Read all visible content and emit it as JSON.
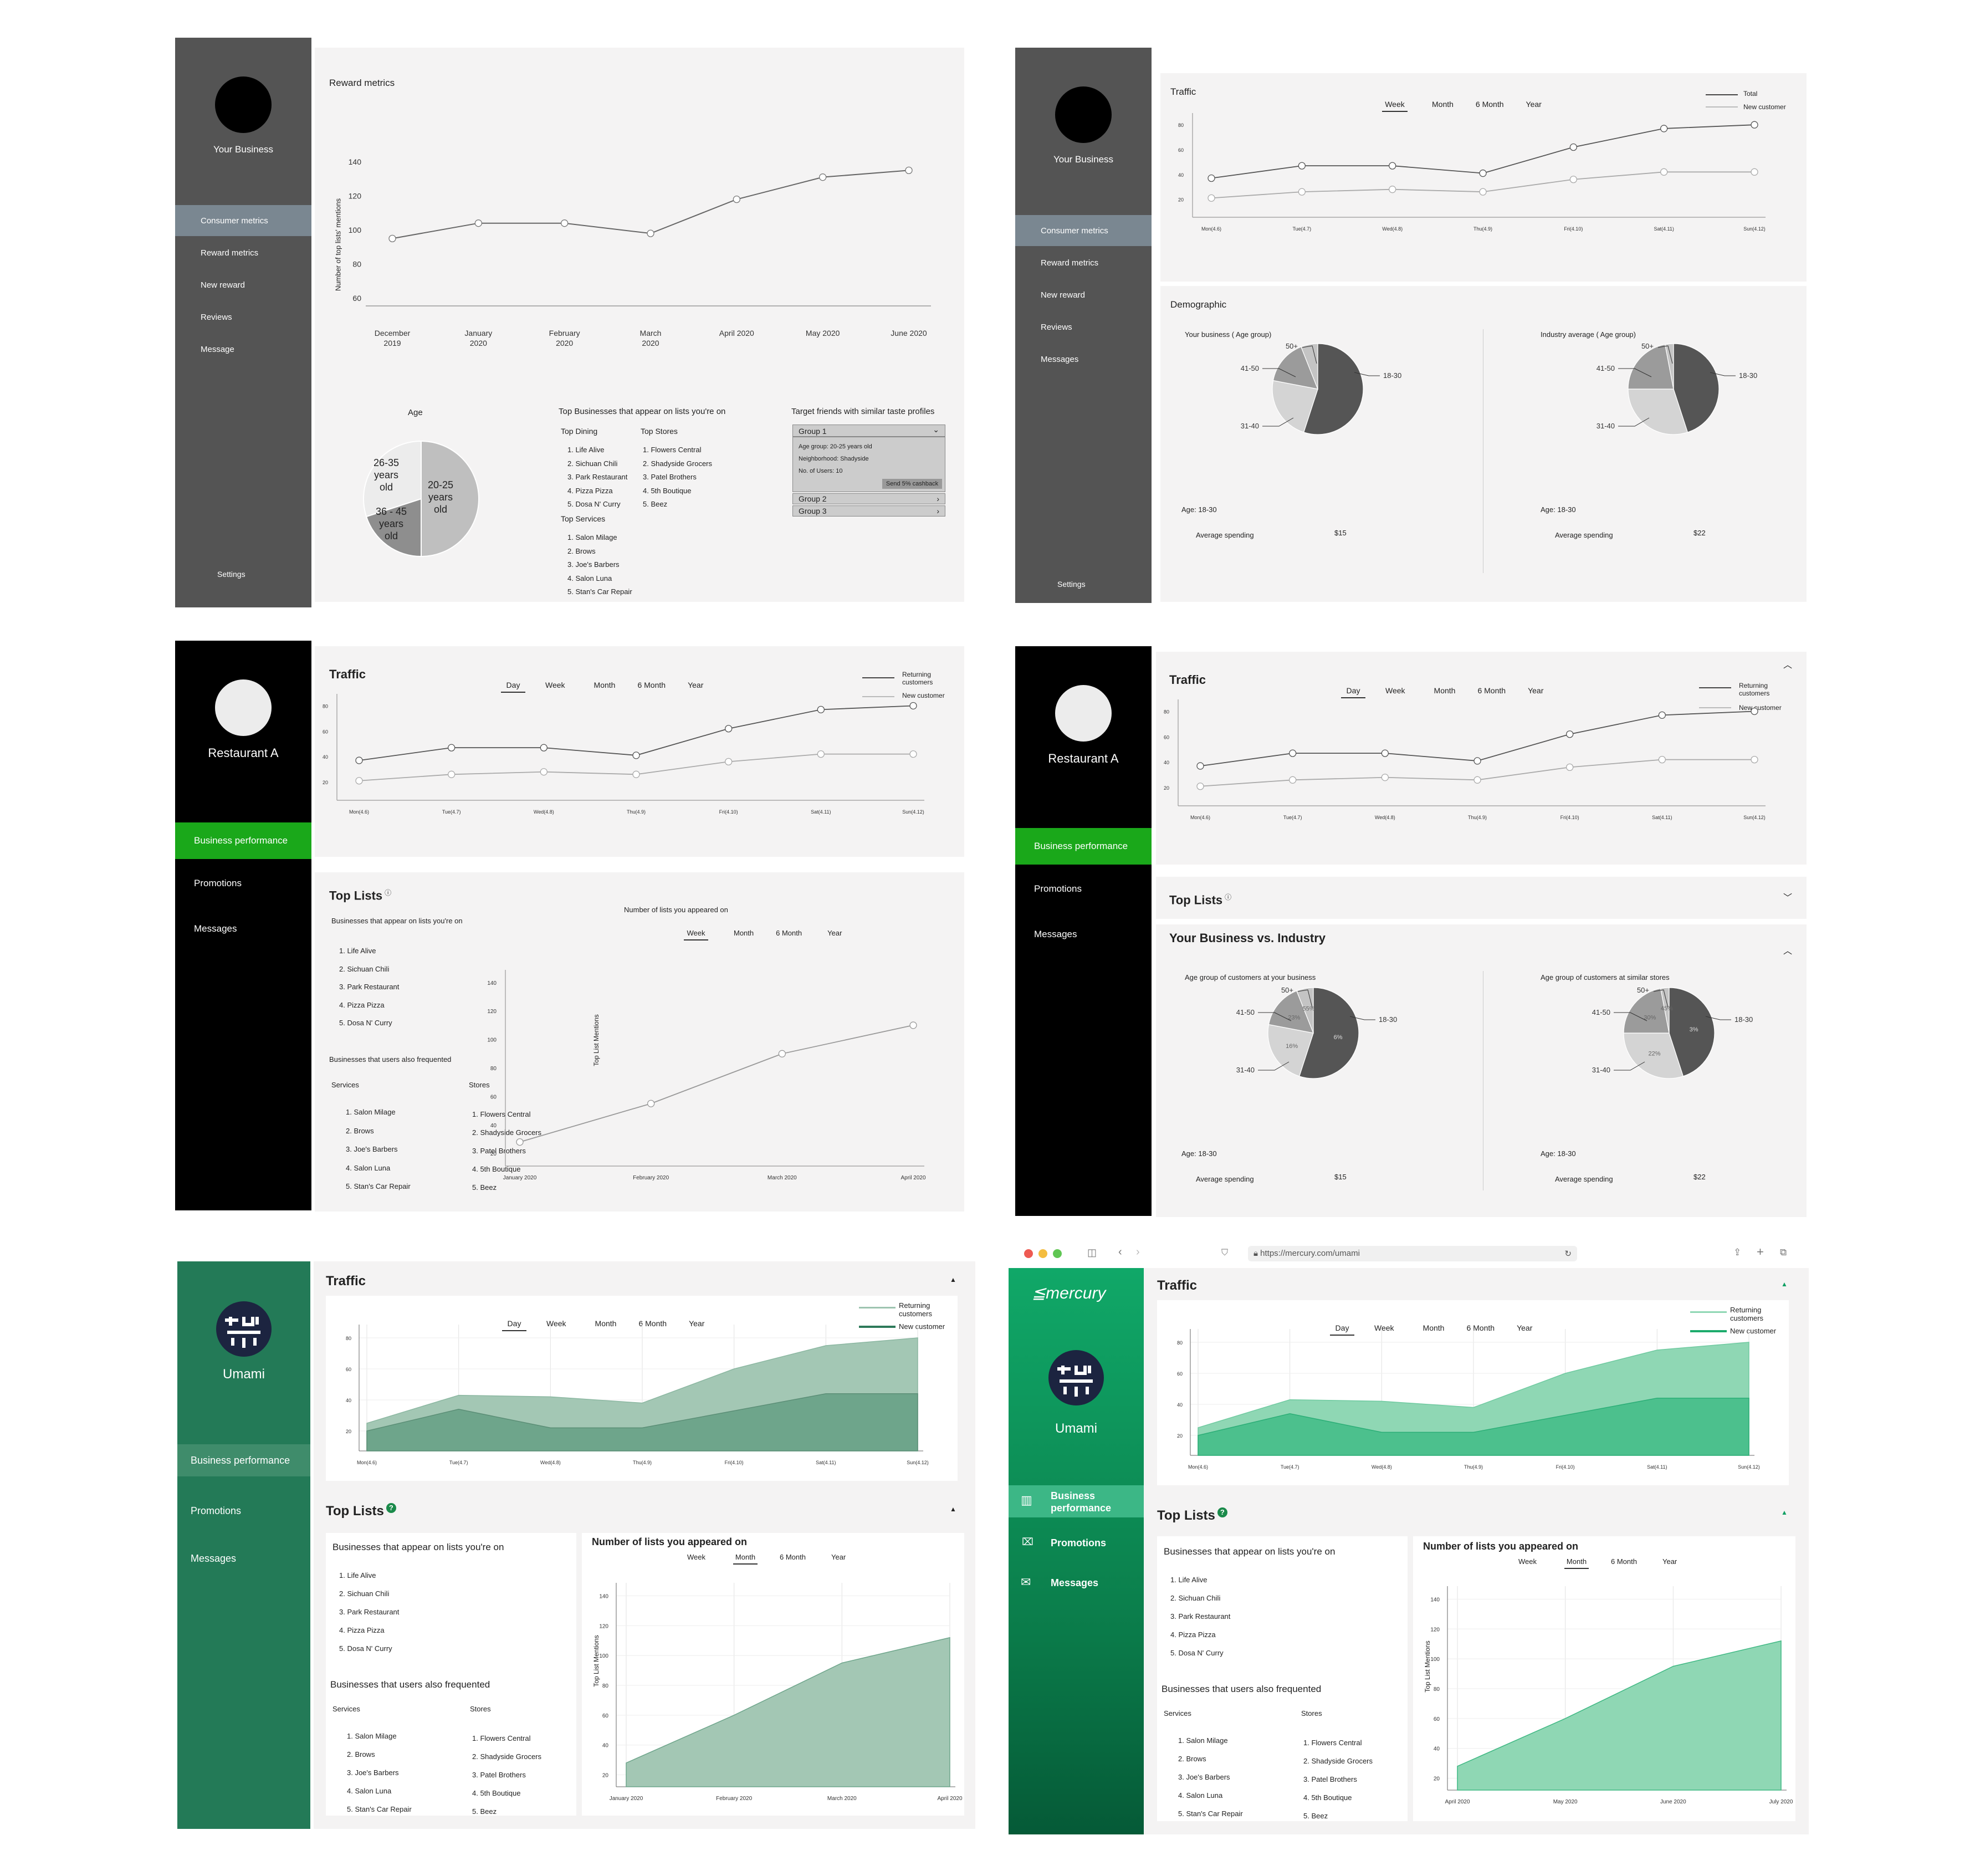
{
  "m1": {
    "business_name": "Your Business",
    "nav": [
      "Consumer metrics",
      "Reward metrics",
      "New reward",
      "Reviews",
      "Message"
    ],
    "settings": "Settings",
    "reward_title": "Reward metrics",
    "ylabel": "Number of top lists' mentions",
    "yticks": [
      "140",
      "120",
      "100",
      "80",
      "60"
    ],
    "xticks": [
      [
        "December",
        "2019"
      ],
      [
        "January",
        "2020"
      ],
      [
        "February",
        "2020"
      ],
      [
        "March",
        "2020"
      ],
      [
        "April 2020",
        ""
      ],
      [
        "May 2020",
        ""
      ],
      [
        "June 2020",
        ""
      ]
    ],
    "age_title": "Age",
    "pie_labels": [
      [
        "26-35",
        "years",
        "old"
      ],
      [
        "20-25",
        "years",
        "old"
      ],
      [
        "36 - 45",
        "years",
        "old"
      ]
    ],
    "topbiz_title": "Top Businesses that appear on lists you're on",
    "dining_title": "Top Dining",
    "dining": [
      "1. Life Alive",
      "2. Sichuan Chili",
      "3. Park Restaurant",
      "4. Pizza Pizza",
      "5. Dosa N' Curry"
    ],
    "stores_title": "Top Stores",
    "stores": [
      "1. Flowers Central",
      "2. Shadyside Grocers",
      "3. Patel Brothers",
      "4. 5th Boutique",
      "5. Beez"
    ],
    "services_title": "Top Services",
    "services": [
      "1. Salon Milage",
      "2. Brows",
      "3. Joe's Barbers",
      "4. Salon Luna",
      "5. Stan's Car Repair"
    ],
    "target_title": "Target friends with similar taste profiles",
    "group1": "Group 1",
    "group1_details": [
      "Age group: 20-25 years old",
      "Neighborhood: Shadyside",
      "No. of Users: 10"
    ],
    "cashback": "Send 5% cashback",
    "group2": "Group 2",
    "group3": "Group 3"
  },
  "m2": {
    "business_name": "Your Business",
    "nav": [
      "Consumer metrics",
      "Reward metrics",
      "New reward",
      "Reviews",
      "Messages"
    ],
    "settings": "Settings",
    "traffic_title": "Traffic",
    "tabs": [
      "Week",
      "Month",
      "6 Month",
      "Year"
    ],
    "legend": [
      "Total",
      "New customer"
    ],
    "yticks": [
      "80",
      "60",
      "40",
      "20"
    ],
    "xticks": [
      "Mon(4.6)",
      "Tue(4.7)",
      "Wed(4.8)",
      "Thu(4.9)",
      "Fri(4.10)",
      "Sat(4.11)",
      "Sun(4.12)"
    ],
    "demo_title": "Demographic",
    "your_age": "Your business ( Age group)",
    "industry_age": "Industry average ( Age group)",
    "slice_labels": [
      "50+",
      "41-50",
      "31-40",
      "18-30"
    ],
    "age_value": "Age: 18-30",
    "avg_spending": "Average spending",
    "your_spend": "$15",
    "industry_spend": "$22"
  },
  "m3": {
    "business_name": "Restaurant A",
    "nav": [
      "Business performance",
      "Promotions",
      "Messages"
    ],
    "traffic_title": "Traffic",
    "tabs": [
      "Day",
      "Week",
      "Month",
      "6 Month",
      "Year"
    ],
    "legend": [
      "Returning customers",
      "New customer"
    ],
    "yticks": [
      "80",
      "60",
      "40",
      "20"
    ],
    "xticks": [
      "Mon(4.6)",
      "Tue(4.7)",
      "Wed(4.8)",
      "Thu(4.9)",
      "Fri(4.10)",
      "Sat(4.11)",
      "Sun(4.12)"
    ],
    "toplists_title": "Top Lists",
    "appear_title": "Businesses that appear on lists you're on",
    "appear": [
      "1. Life Alive",
      "2. Sichuan Chili",
      "3. Park Restaurant",
      "4. Pizza Pizza",
      "5. Dosa N' Curry"
    ],
    "freq_title": "Businesses that users also frequented",
    "services_title": "Services",
    "services": [
      "1. Salon Milage",
      "2. Brows",
      "3. Joe's Barbers",
      "4. Salon Luna",
      "5. Stan's Car Repair"
    ],
    "stores_title": "Stores",
    "stores": [
      "1. Flowers Central",
      "2. Shadyside Grocers",
      "3. Patel Brothers",
      "4. 5th Boutique",
      "5. Beez"
    ],
    "lists_chart_title": "Number of lists you appeared on",
    "lists_tabs": [
      "Week",
      "Month",
      "6 Month",
      "Year"
    ],
    "lists_ylabel": "Top List Mentions",
    "lists_yticks": [
      "140",
      "120",
      "100",
      "80",
      "60",
      "40",
      "20"
    ],
    "lists_xticks": [
      "January 2020",
      "February 2020",
      "March 2020",
      "April 2020"
    ]
  },
  "m4": {
    "business_name": "Restaurant A",
    "nav": [
      "Business performance",
      "Promotions",
      "Messages"
    ],
    "traffic_title": "Traffic",
    "tabs": [
      "Day",
      "Week",
      "Month",
      "6 Month",
      "Year"
    ],
    "legend": [
      "Returning customers",
      "New customer"
    ],
    "yticks": [
      "80",
      "60",
      "40",
      "20"
    ],
    "xticks": [
      "Mon(4.6)",
      "Tue(4.7)",
      "Wed(4.8)",
      "Thu(4.9)",
      "Fri(4.10)",
      "Sat(4.11)",
      "Sun(4.12)"
    ],
    "toplists_title": "Top Lists",
    "vs_title": "Your Business vs. Industry",
    "your_age": "Age group of customers at your business",
    "similar_age": "Age group of customers at similar stores",
    "slice_labels": [
      "50+",
      "41-50",
      "31-40",
      "18-30"
    ],
    "your_pcts": [
      "6%",
      "16%",
      "23%",
      "55%"
    ],
    "similar_pcts": [
      "3%",
      "22%",
      "30%",
      "45%"
    ],
    "age_value": "Age: 18-30",
    "avg_spending": "Average spending",
    "your_spend": "$15",
    "similar_spend": "$22"
  },
  "m5": {
    "business_name": "Umami",
    "nav": [
      "Business performance",
      "Promotions",
      "Messages"
    ],
    "traffic_title": "Traffic",
    "tabs": [
      "Day",
      "Week",
      "Month",
      "6 Month",
      "Year"
    ],
    "legend": [
      "Returning customers",
      "New customer"
    ],
    "yticks": [
      "80",
      "60",
      "40",
      "20"
    ],
    "xticks": [
      "Mon(4.6)",
      "Tue(4.7)",
      "Wed(4.8)",
      "Thu(4.9)",
      "Fri(4.10)",
      "Sat(4.11)",
      "Sun(4.12)"
    ],
    "toplists_title": "Top Lists",
    "appear_title": "Businesses that appear on lists you're on",
    "appear": [
      "1. Life Alive",
      "2. Sichuan Chili",
      "3. Park Restaurant",
      "4. Pizza Pizza",
      "5. Dosa N' Curry"
    ],
    "freq_title": "Businesses that users also frequented",
    "services_title": "Services",
    "services": [
      "1. Salon Milage",
      "2. Brows",
      "3. Joe's Barbers",
      "4. Salon Luna",
      "5. Stan's Car Repair"
    ],
    "stores_title": "Stores",
    "stores": [
      "1. Flowers Central",
      "2. Shadyside Grocers",
      "3. Patel Brothers",
      "4. 5th Boutique",
      "5. Beez"
    ],
    "lists_chart_title": "Number of lists you appeared on",
    "lists_tabs": [
      "Week",
      "Month",
      "6 Month",
      "Year"
    ],
    "lists_ylabel": "Top List Mentions",
    "lists_yticks": [
      "140",
      "120",
      "100",
      "80",
      "60",
      "40",
      "20"
    ],
    "lists_xticks": [
      "January 2020",
      "February 2020",
      "March 2020",
      "April 2020"
    ]
  },
  "m6": {
    "url": "https://mercury.com/umami",
    "logo": "mercury",
    "business_name": "Umami",
    "nav": [
      "Business performance",
      "Promotions",
      "Messages"
    ],
    "traffic_title": "Traffic",
    "tabs": [
      "Day",
      "Week",
      "Month",
      "6 Month",
      "Year"
    ],
    "legend": [
      "Returning customers",
      "New customer"
    ],
    "yticks": [
      "80",
      "60",
      "40",
      "20"
    ],
    "xticks": [
      "Mon(4.6)",
      "Tue(4.7)",
      "Wed(4.8)",
      "Thu(4.9)",
      "Fri(4.10)",
      "Sat(4.11)",
      "Sun(4.12)"
    ],
    "toplists_title": "Top Lists",
    "appear_title": "Businesses that appear on lists you're on",
    "appear": [
      "1. Life Alive",
      "2. Sichuan Chili",
      "3. Park Restaurant",
      "4. Pizza Pizza",
      "5. Dosa N' Curry"
    ],
    "freq_title": "Businesses that users also frequented",
    "services_title": "Services",
    "services": [
      "1. Salon Milage",
      "2. Brows",
      "3. Joe's Barbers",
      "4. Salon Luna",
      "5. Stan's Car Repair"
    ],
    "stores_title": "Stores",
    "stores": [
      "1. Flowers Central",
      "2. Shadyside Grocers",
      "3. Patel Brothers",
      "4. 5th Boutique",
      "5. Beez"
    ],
    "lists_chart_title": "Number of lists you appeared on",
    "lists_tabs": [
      "Week",
      "Month",
      "6 Month",
      "Year"
    ],
    "lists_ylabel": "Top List Mentions",
    "lists_yticks": [
      "140",
      "120",
      "100",
      "80",
      "60",
      "40",
      "20"
    ],
    "lists_xticks": [
      "April 2020",
      "May 2020",
      "June 2020",
      "July 2020"
    ]
  },
  "colors": {
    "gray_sidebar": "#545454",
    "gray_active": "#7a8791",
    "black_sidebar": "#000000",
    "bright_green": "#1aa81a",
    "umami_green": "#237a57",
    "umami_active": "#3f8c6b",
    "mercury_green": "#0e9f62",
    "panel_bg": "#f4f3f3"
  },
  "chart_data": [
    {
      "type": "line",
      "panel": "m1",
      "title": "Reward metrics",
      "ylabel": "Number of top lists' mentions",
      "categories": [
        "December 2019",
        "January 2020",
        "February 2020",
        "March 2020",
        "April 2020",
        "May 2020",
        "June 2020"
      ],
      "series": [
        {
          "values": [
            95,
            104,
            104,
            98,
            118,
            131,
            135
          ]
        }
      ],
      "ylim": [
        60,
        140
      ]
    },
    {
      "type": "pie",
      "panel": "m1",
      "title": "Age",
      "slices": [
        {
          "label": "20-25 years old",
          "value": 50
        },
        {
          "label": "36 - 45 years old",
          "value": 20
        },
        {
          "label": "26-35 years old",
          "value": 30
        }
      ]
    },
    {
      "type": "line",
      "panel": "m2",
      "title": "Traffic",
      "categories": [
        "Mon(4.6)",
        "Tue(4.7)",
        "Wed(4.8)",
        "Thu(4.9)",
        "Fri(4.10)",
        "Sat(4.11)",
        "Sun(4.12)"
      ],
      "series": [
        {
          "name": "Total",
          "values": [
            37,
            47,
            47,
            41,
            62,
            77,
            80
          ]
        },
        {
          "name": "New customer",
          "values": [
            21,
            26,
            28,
            26,
            36,
            42,
            42
          ]
        }
      ],
      "ylim": [
        10,
        85
      ]
    },
    {
      "type": "pie",
      "panel": "m2",
      "title": "Your business ( Age group)",
      "slices": [
        {
          "label": "18-30",
          "value": 55
        },
        {
          "label": "31-40",
          "value": 23
        },
        {
          "label": "41-50",
          "value": 16
        },
        {
          "label": "50+",
          "value": 6
        }
      ]
    },
    {
      "type": "pie",
      "panel": "m2",
      "title": "Industry average ( Age group)",
      "slices": [
        {
          "label": "18-30",
          "value": 45
        },
        {
          "label": "31-40",
          "value": 30
        },
        {
          "label": "41-50",
          "value": 22
        },
        {
          "label": "50+",
          "value": 3
        }
      ]
    },
    {
      "type": "line",
      "panel": "m3",
      "title": "Traffic",
      "categories": [
        "Mon(4.6)",
        "Tue(4.7)",
        "Wed(4.8)",
        "Thu(4.9)",
        "Fri(4.10)",
        "Sat(4.11)",
        "Sun(4.12)"
      ],
      "series": [
        {
          "name": "Returning customers",
          "values": [
            37,
            47,
            47,
            41,
            62,
            77,
            80
          ]
        },
        {
          "name": "New customer",
          "values": [
            21,
            26,
            28,
            26,
            36,
            42,
            42
          ]
        }
      ],
      "ylim": [
        10,
        85
      ]
    },
    {
      "type": "line",
      "panel": "m3",
      "title": "Number of lists you appeared on",
      "ylabel": "Top List Mentions",
      "categories": [
        "January 2020",
        "February 2020",
        "March 2020",
        "April 2020"
      ],
      "series": [
        {
          "values": [
            28,
            55,
            90,
            110
          ]
        }
      ],
      "ylim": [
        15,
        145
      ]
    },
    {
      "type": "line",
      "panel": "m4",
      "title": "Traffic",
      "categories": [
        "Mon(4.6)",
        "Tue(4.7)",
        "Wed(4.8)",
        "Thu(4.9)",
        "Fri(4.10)",
        "Sat(4.11)",
        "Sun(4.12)"
      ],
      "series": [
        {
          "name": "Returning customers",
          "values": [
            37,
            47,
            47,
            41,
            62,
            77,
            80
          ]
        },
        {
          "name": "New customer",
          "values": [
            21,
            26,
            28,
            26,
            36,
            42,
            42
          ]
        }
      ],
      "ylim": [
        10,
        85
      ]
    },
    {
      "type": "pie",
      "panel": "m4",
      "title": "Age group of customers at your business",
      "slices": [
        {
          "label": "18-30",
          "value": 55
        },
        {
          "label": "31-40",
          "value": 23
        },
        {
          "label": "41-50",
          "value": 16
        },
        {
          "label": "50+",
          "value": 6
        }
      ]
    },
    {
      "type": "pie",
      "panel": "m4",
      "title": "Age group of customers at similar stores",
      "slices": [
        {
          "label": "18-30",
          "value": 45
        },
        {
          "label": "31-40",
          "value": 30
        },
        {
          "label": "41-50",
          "value": 22
        },
        {
          "label": "50+",
          "value": 3
        }
      ]
    },
    {
      "type": "area",
      "panel": "m5",
      "title": "Traffic",
      "categories": [
        "Mon(4.6)",
        "Tue(4.7)",
        "Wed(4.8)",
        "Thu(4.9)",
        "Fri(4.10)",
        "Sat(4.11)",
        "Sun(4.12)"
      ],
      "series": [
        {
          "name": "Returning customers",
          "values": [
            25,
            43,
            42,
            38,
            60,
            75,
            80
          ]
        },
        {
          "name": "New customer",
          "values": [
            20,
            34,
            22,
            22,
            33,
            44,
            44
          ]
        }
      ],
      "ylim": [
        10,
        85
      ]
    },
    {
      "type": "area",
      "panel": "m5",
      "title": "Number of lists you appeared on",
      "ylabel": "Top List Mentions",
      "categories": [
        "January 2020",
        "February 2020",
        "March 2020",
        "April 2020"
      ],
      "series": [
        {
          "values": [
            28,
            60,
            95,
            112
          ]
        }
      ],
      "ylim": [
        15,
        145
      ]
    },
    {
      "type": "area",
      "panel": "m6",
      "title": "Traffic",
      "categories": [
        "Mon(4.6)",
        "Tue(4.7)",
        "Wed(4.8)",
        "Thu(4.9)",
        "Fri(4.10)",
        "Sat(4.11)",
        "Sun(4.12)"
      ],
      "series": [
        {
          "name": "Returning customers",
          "values": [
            25,
            43,
            42,
            38,
            60,
            75,
            80
          ]
        },
        {
          "name": "New customer",
          "values": [
            20,
            34,
            22,
            22,
            33,
            44,
            44
          ]
        }
      ],
      "ylim": [
        10,
        85
      ]
    },
    {
      "type": "area",
      "panel": "m6",
      "title": "Number of lists you appeared on",
      "ylabel": "Top List Mentions",
      "categories": [
        "April 2020",
        "May 2020",
        "June 2020",
        "July 2020"
      ],
      "series": [
        {
          "values": [
            28,
            60,
            95,
            112
          ]
        }
      ],
      "ylim": [
        15,
        145
      ]
    }
  ]
}
